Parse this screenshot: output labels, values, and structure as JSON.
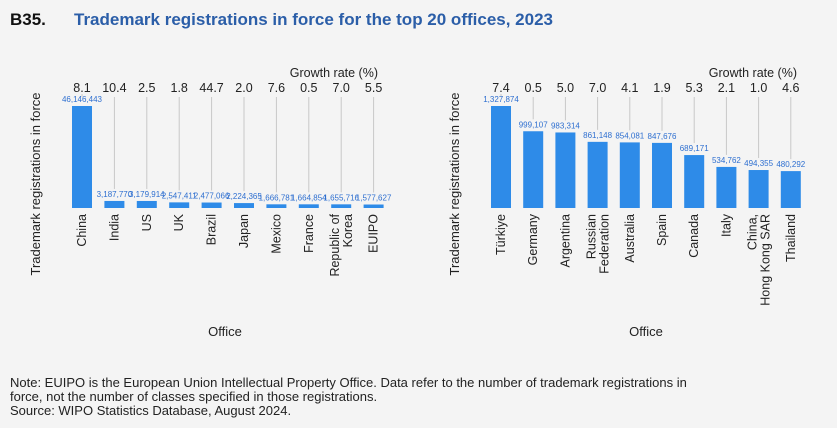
{
  "figure_id": "B35.",
  "title": "Trademark registrations in force for the top 20 offices, 2023",
  "chart_data": [
    {
      "type": "bar",
      "categories": [
        "China",
        "India",
        "US",
        "UK",
        "Brazil",
        "Japan",
        "Mexico",
        "France",
        "Republic of Korea",
        "EUIPO"
      ],
      "values": [
        46146443,
        3187770,
        3179914,
        2547411,
        2477066,
        2224365,
        1666781,
        1664854,
        1655716,
        1577627
      ],
      "value_labels": [
        "46,146,443",
        "3,187,770",
        "3,179,914",
        "2,547,411",
        "2,477,066",
        "2,224,365",
        "1,666,781",
        "1,664,854",
        "1,655,716",
        "1,577,627"
      ],
      "growth_rates": [
        "8.1",
        "10.4",
        "2.5",
        "1.8",
        "44.7",
        "2.0",
        "7.6",
        "0.5",
        "7.0",
        "5.5"
      ],
      "growth_label": "Growth rate (%)",
      "xlabel": "Office",
      "ylabel": "Trademark registrations in force",
      "bar_color": "#2e8be8"
    },
    {
      "type": "bar",
      "categories": [
        "Türkiye",
        "Germany",
        "Argentina",
        "Russian Federation",
        "Australia",
        "Spain",
        "Canada",
        "Italy",
        "China, Hong Kong SAR",
        "Thailand"
      ],
      "values": [
        1327874,
        999107,
        983314,
        861148,
        854081,
        847676,
        689171,
        534762,
        494355,
        480292
      ],
      "value_labels": [
        "1,327,874",
        "999,107",
        "983,314",
        "861,148",
        "854,081",
        "847,676",
        "689,171",
        "534,762",
        "494,355",
        "480,292"
      ],
      "growth_rates": [
        "7.4",
        "0.5",
        "5.0",
        "7.0",
        "4.1",
        "1.9",
        "5.3",
        "2.1",
        "1.0",
        "4.6"
      ],
      "growth_label": "Growth rate (%)",
      "xlabel": "Office",
      "ylabel": "Trademark registrations in force",
      "bar_color": "#2e8be8"
    }
  ],
  "note_lines": [
    "Note: EUIPO is the European Union Intellectual Property Office. Data refer to the number of trademark registrations in",
    "force, not the number of classes specified in those registrations.",
    "Source: WIPO Statistics Database, August 2024."
  ]
}
